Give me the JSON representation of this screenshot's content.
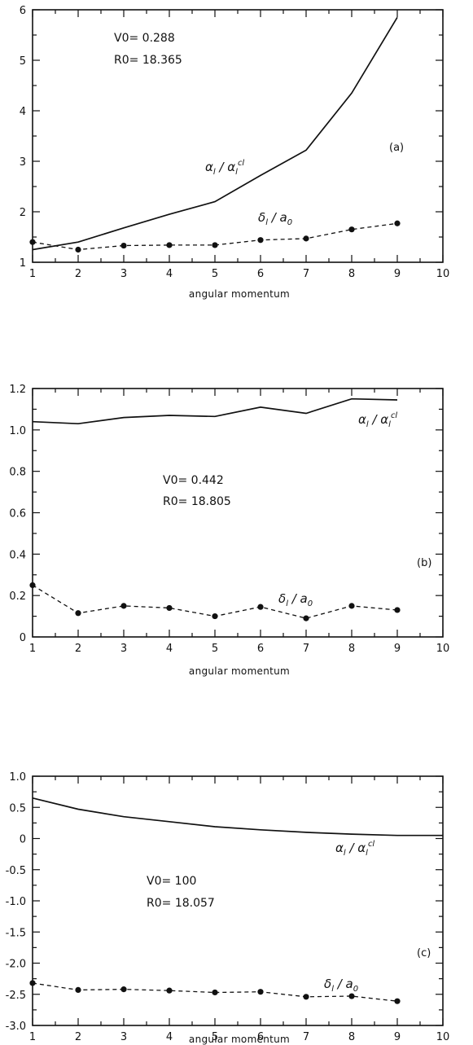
{
  "chart_data": [
    {
      "type": "line",
      "panel_label": "(a)",
      "params": [
        "V0= 0.288",
        "R0= 18.365"
      ],
      "xlabel": "angular momentum",
      "x": [
        1,
        2,
        3,
        4,
        5,
        6,
        7,
        8,
        9
      ],
      "xlim": [
        1,
        10
      ],
      "xticks": [
        "1",
        "2",
        "3",
        "4",
        "5",
        "6",
        "7",
        "8",
        "9",
        "10"
      ],
      "ylim": [
        1,
        6
      ],
      "yticks": [
        {
          "v": 1,
          "label": "1"
        },
        {
          "v": 2,
          "label": "2"
        },
        {
          "v": 3,
          "label": "3"
        },
        {
          "v": 4,
          "label": "4"
        },
        {
          "v": 5,
          "label": "5"
        },
        {
          "v": 6,
          "label": "6"
        }
      ],
      "series": [
        {
          "name": "α1/α1cl",
          "style": "solid",
          "values": [
            1.25,
            1.4,
            1.68,
            1.95,
            2.2,
            2.72,
            3.22,
            4.35,
            5.85
          ]
        },
        {
          "name": "δ1/a0",
          "style": "dashed",
          "markers": true,
          "values": [
            1.4,
            1.25,
            1.33,
            1.34,
            1.34,
            1.44,
            1.47,
            1.65,
            1.77
          ]
        }
      ]
    },
    {
      "type": "line",
      "panel_label": "(b)",
      "params": [
        "V0= 0.442",
        "R0= 18.805"
      ],
      "xlabel": "angular momentum",
      "x": [
        1,
        2,
        3,
        4,
        5,
        6,
        7,
        8,
        9
      ],
      "xlim": [
        1,
        10
      ],
      "xticks": [
        "1",
        "2",
        "3",
        "4",
        "5",
        "6",
        "7",
        "8",
        "9",
        "10"
      ],
      "ylim": [
        0,
        1.2
      ],
      "yticks": [
        {
          "v": 0,
          "label": "0"
        },
        {
          "v": 0.2,
          "label": "0.2"
        },
        {
          "v": 0.4,
          "label": "0.4"
        },
        {
          "v": 0.6,
          "label": "0.6"
        },
        {
          "v": 0.8,
          "label": "0.8"
        },
        {
          "v": 1.0,
          "label": "1.0"
        },
        {
          "v": 1.2,
          "label": "1.2"
        }
      ],
      "series": [
        {
          "name": "α1/α1cl",
          "style": "solid",
          "values": [
            1.04,
            1.03,
            1.06,
            1.07,
            1.065,
            1.11,
            1.08,
            1.15,
            1.145
          ]
        },
        {
          "name": "δ1/a0",
          "style": "dashed",
          "markers": true,
          "values": [
            0.25,
            0.115,
            0.15,
            0.14,
            0.1,
            0.145,
            0.09,
            0.15,
            0.13
          ]
        }
      ]
    },
    {
      "type": "line",
      "panel_label": "(c)",
      "params": [
        "V0= 100",
        "R0= 18.057"
      ],
      "xlabel": "angular momentum",
      "x": [
        1,
        2,
        3,
        4,
        5,
        6,
        7,
        8,
        9,
        10
      ],
      "xlim": [
        1,
        10
      ],
      "xticks": [
        "1",
        "2",
        "3",
        "4",
        "5",
        "6",
        "7",
        "8",
        "9",
        "10"
      ],
      "ylim": [
        -3.0,
        1.0
      ],
      "yticks": [
        {
          "v": -3.0,
          "label": "-3.0"
        },
        {
          "v": -2.5,
          "label": "-2.5"
        },
        {
          "v": -2.0,
          "label": "-2.0"
        },
        {
          "v": -1.5,
          "label": "-1.5"
        },
        {
          "v": -1.0,
          "label": "-1.0"
        },
        {
          "v": -0.5,
          "label": "-0.5"
        },
        {
          "v": 0,
          "label": "0"
        },
        {
          "v": 0.5,
          "label": "0.5"
        },
        {
          "v": 1.0,
          "label": "1.0"
        }
      ],
      "series": [
        {
          "name": "α1/α1cl",
          "style": "solid",
          "values": [
            0.65,
            0.47,
            0.35,
            0.27,
            0.19,
            0.14,
            0.1,
            0.07,
            0.05,
            0.05
          ]
        },
        {
          "name": "δ1/a0",
          "style": "dashed",
          "markers": true,
          "values": [
            -2.32,
            -2.43,
            -2.42,
            -2.44,
            -2.47,
            -2.46,
            -2.54,
            -2.53,
            -2.61,
            null
          ]
        }
      ]
    }
  ]
}
